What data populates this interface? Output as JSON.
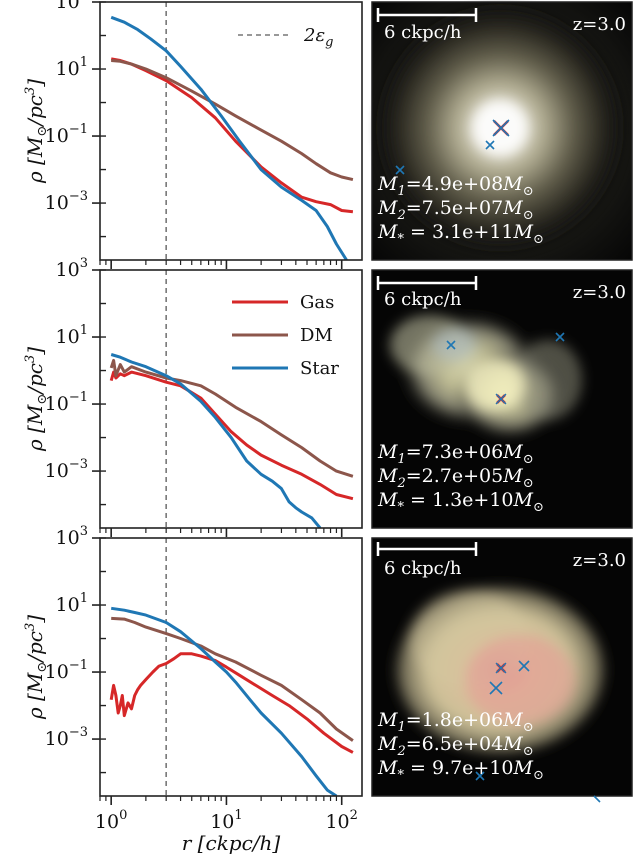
{
  "chart_data": [
    {
      "type": "line",
      "row": 1,
      "ylabel": "ρ [M⊙/pc³]",
      "xlabel": "",
      "xscale": "log",
      "yscale": "log",
      "xlim": [
        0.8,
        150
      ],
      "ylim": [
        2e-05,
        1000
      ],
      "yticks": [
        {
          "v": 1000,
          "base": "10",
          "exp": "3"
        },
        {
          "v": 10,
          "base": "10",
          "exp": "1"
        },
        {
          "v": 0.1,
          "base": "10",
          "exp": "−1"
        },
        {
          "v": 0.001,
          "base": "10",
          "exp": "−3"
        }
      ],
      "vline": {
        "x": 3.0,
        "label": "2ε",
        "sub": "g"
      },
      "legend_position": "upper right",
      "series": [
        {
          "key": "gas",
          "color": "#d62728",
          "x": [
            1.0,
            1.2,
            1.5,
            2.0,
            3.0,
            5.0,
            8.0,
            12.0,
            20.0,
            30.0,
            45.0,
            60.0,
            80.0,
            100.0,
            125.0
          ],
          "y": [
            20,
            18,
            14,
            9,
            4.5,
            1.4,
            0.35,
            0.07,
            0.012,
            0.004,
            0.0015,
            0.0011,
            0.0009,
            0.0006,
            0.00055
          ]
        },
        {
          "key": "dm",
          "color": "#8c564b",
          "x": [
            1.0,
            1.2,
            1.5,
            2.0,
            3.0,
            5.0,
            8.0,
            12.0,
            20.0,
            30.0,
            45.0,
            60.0,
            80.0,
            100.0,
            125.0
          ],
          "y": [
            18,
            17,
            14,
            10,
            5.5,
            2.2,
            0.9,
            0.4,
            0.15,
            0.07,
            0.03,
            0.015,
            0.008,
            0.006,
            0.005
          ]
        },
        {
          "key": "star",
          "color": "#1f77b4",
          "x": [
            1.0,
            1.3,
            1.7,
            2.2,
            3.0,
            4.0,
            6.0,
            9.0,
            13.0,
            20.0,
            30.0,
            45.0,
            60.0,
            75.0,
            90.0,
            110.0
          ],
          "y": [
            350,
            250,
            150,
            80,
            35,
            12,
            2.5,
            0.4,
            0.07,
            0.01,
            0.003,
            0.0012,
            0.0006,
            0.0002,
            6e-05,
            2e-05
          ]
        }
      ]
    },
    {
      "type": "line",
      "row": 2,
      "ylabel": "ρ [M⊙/pc³]",
      "xlabel": "",
      "xscale": "log",
      "yscale": "log",
      "xlim": [
        0.8,
        150
      ],
      "ylim": [
        2e-05,
        1000
      ],
      "yticks": [
        {
          "v": 1000,
          "base": "10",
          "exp": "3"
        },
        {
          "v": 10,
          "base": "10",
          "exp": "1"
        },
        {
          "v": 0.1,
          "base": "10",
          "exp": "−1"
        },
        {
          "v": 0.001,
          "base": "10",
          "exp": "−3"
        }
      ],
      "vline": {
        "x": 3.0
      },
      "legend_position": "upper right",
      "legend": [
        {
          "key": "gas",
          "label": "Gas",
          "color": "#d62728"
        },
        {
          "key": "dm",
          "label": "DM",
          "color": "#8c564b"
        },
        {
          "key": "star",
          "label": "Star",
          "color": "#1f77b4"
        }
      ],
      "series": [
        {
          "key": "gas",
          "color": "#d62728",
          "x": [
            1.0,
            1.05,
            1.1,
            1.2,
            1.3,
            1.5,
            2.0,
            3.0,
            4.0,
            6.0,
            8.0,
            11.0,
            15.0,
            20.0,
            30.0,
            45.0,
            65.0,
            90.0,
            125.0
          ],
          "y": [
            0.5,
            0.9,
            0.6,
            0.8,
            0.7,
            0.9,
            0.7,
            0.45,
            0.35,
            0.15,
            0.05,
            0.015,
            0.006,
            0.003,
            0.0015,
            0.0008,
            0.0004,
            0.0002,
            0.00015
          ]
        },
        {
          "key": "dm",
          "color": "#8c564b",
          "x": [
            1.0,
            1.05,
            1.1,
            1.2,
            1.3,
            1.5,
            2.0,
            3.0,
            4.0,
            6.0,
            8.0,
            12.0,
            20.0,
            30.0,
            45.0,
            65.0,
            90.0,
            125.0
          ],
          "y": [
            1.2,
            2.0,
            0.7,
            1.5,
            0.9,
            1.3,
            0.9,
            0.6,
            0.5,
            0.35,
            0.2,
            0.08,
            0.03,
            0.012,
            0.005,
            0.002,
            0.001,
            0.0007
          ]
        },
        {
          "key": "star",
          "color": "#1f77b4",
          "x": [
            1.0,
            1.2,
            1.5,
            2.0,
            3.0,
            4.0,
            6.0,
            8.0,
            11.0,
            15.0,
            20.0,
            25.0,
            30.0,
            35.0,
            40.0,
            45.0,
            55.0,
            65.0
          ],
          "y": [
            3.0,
            2.5,
            1.8,
            1.3,
            0.7,
            0.4,
            0.12,
            0.04,
            0.01,
            0.002,
            0.0008,
            0.0005,
            0.0003,
            0.00012,
            8e-05,
            6e-05,
            4e-05,
            2e-05
          ]
        }
      ]
    },
    {
      "type": "line",
      "row": 3,
      "ylabel": "ρ [M⊙/pc³]",
      "xlabel": "r [ckpc/h]",
      "xscale": "log",
      "yscale": "log",
      "xlim": [
        0.8,
        150
      ],
      "ylim": [
        2e-05,
        1000
      ],
      "xticks": [
        {
          "v": 1,
          "base": "10",
          "exp": "0"
        },
        {
          "v": 10,
          "base": "10",
          "exp": "1"
        },
        {
          "v": 100,
          "base": "10",
          "exp": "2"
        }
      ],
      "yticks": [
        {
          "v": 1000,
          "base": "10",
          "exp": "3"
        },
        {
          "v": 10,
          "base": "10",
          "exp": "1"
        },
        {
          "v": 0.1,
          "base": "10",
          "exp": "−1"
        },
        {
          "v": 0.001,
          "base": "10",
          "exp": "−3"
        }
      ],
      "vline": {
        "x": 3.0
      },
      "series": [
        {
          "key": "gas",
          "color": "#d62728",
          "x": [
            1.0,
            1.05,
            1.1,
            1.15,
            1.2,
            1.25,
            1.3,
            1.4,
            1.5,
            1.6,
            1.7,
            1.8,
            2.0,
            2.3,
            2.6,
            3.0,
            3.5,
            4.0,
            5.0,
            6.0,
            8.0,
            10.0,
            13.0,
            18.0,
            25.0,
            35.0,
            50.0,
            70.0,
            100.0,
            125.0
          ],
          "y": [
            0.015,
            0.04,
            0.02,
            0.006,
            0.01,
            0.02,
            0.005,
            0.012,
            0.008,
            0.02,
            0.03,
            0.04,
            0.06,
            0.1,
            0.15,
            0.18,
            0.25,
            0.35,
            0.35,
            0.3,
            0.22,
            0.14,
            0.08,
            0.04,
            0.02,
            0.01,
            0.004,
            0.0015,
            0.0006,
            0.0004
          ]
        },
        {
          "key": "dm",
          "color": "#8c564b",
          "x": [
            1.0,
            1.3,
            1.6,
            2.0,
            3.0,
            4.0,
            6.0,
            8.0,
            12.0,
            20.0,
            30.0,
            45.0,
            65.0,
            90.0,
            125.0
          ],
          "y": [
            4.0,
            3.8,
            3.0,
            2.2,
            1.4,
            1.0,
            0.6,
            0.35,
            0.2,
            0.08,
            0.04,
            0.015,
            0.006,
            0.002,
            0.0009
          ]
        },
        {
          "key": "star",
          "color": "#1f77b4",
          "x": [
            1.0,
            1.3,
            1.6,
            2.0,
            3.0,
            4.0,
            6.0,
            8.0,
            10.0,
            12.0,
            16.0,
            20.0,
            30.0,
            45.0,
            60.0,
            75.0,
            90.0
          ],
          "y": [
            8.0,
            7.0,
            6.0,
            5.0,
            3.0,
            1.6,
            0.5,
            0.2,
            0.1,
            0.05,
            0.015,
            0.006,
            0.0015,
            0.0003,
            8e-05,
            3e-05,
            2e-05
          ]
        }
      ]
    }
  ],
  "images": [
    {
      "redshift": "z=3.0",
      "scalebar": "6 ckpc/h",
      "masses": [
        {
          "sym": "M",
          "sub": "1",
          "val": "=4.9e+08",
          "unit": "M",
          "unit_sub": "⊙"
        },
        {
          "sym": "M",
          "sub": "2",
          "val": "=7.5e+07",
          "unit": "M",
          "unit_sub": "⊙"
        },
        {
          "sym": "M",
          "sub": "*",
          "val": " = 3.1e+11",
          "unit": "M",
          "unit_sub": "⊙"
        }
      ]
    },
    {
      "redshift": "z=3.0",
      "scalebar": "6 ckpc/h",
      "masses": [
        {
          "sym": "M",
          "sub": "1",
          "val": "=7.3e+06",
          "unit": "M",
          "unit_sub": "⊙"
        },
        {
          "sym": "M",
          "sub": "2",
          "val": "=2.7e+05",
          "unit": "M",
          "unit_sub": "⊙"
        },
        {
          "sym": "M",
          "sub": "*",
          "val": " = 1.3e+10",
          "unit": "M",
          "unit_sub": "⊙"
        }
      ]
    },
    {
      "redshift": "z=3.0",
      "scalebar": "6 ckpc/h",
      "masses": [
        {
          "sym": "M",
          "sub": "1",
          "val": "=1.8e+06",
          "unit": "M",
          "unit_sub": "⊙"
        },
        {
          "sym": "M",
          "sub": "2",
          "val": "=6.5e+04",
          "unit": "M",
          "unit_sub": "⊙"
        },
        {
          "sym": "M",
          "sub": "*",
          "val": " = 9.7e+10",
          "unit": "M",
          "unit_sub": "⊙"
        }
      ]
    }
  ]
}
